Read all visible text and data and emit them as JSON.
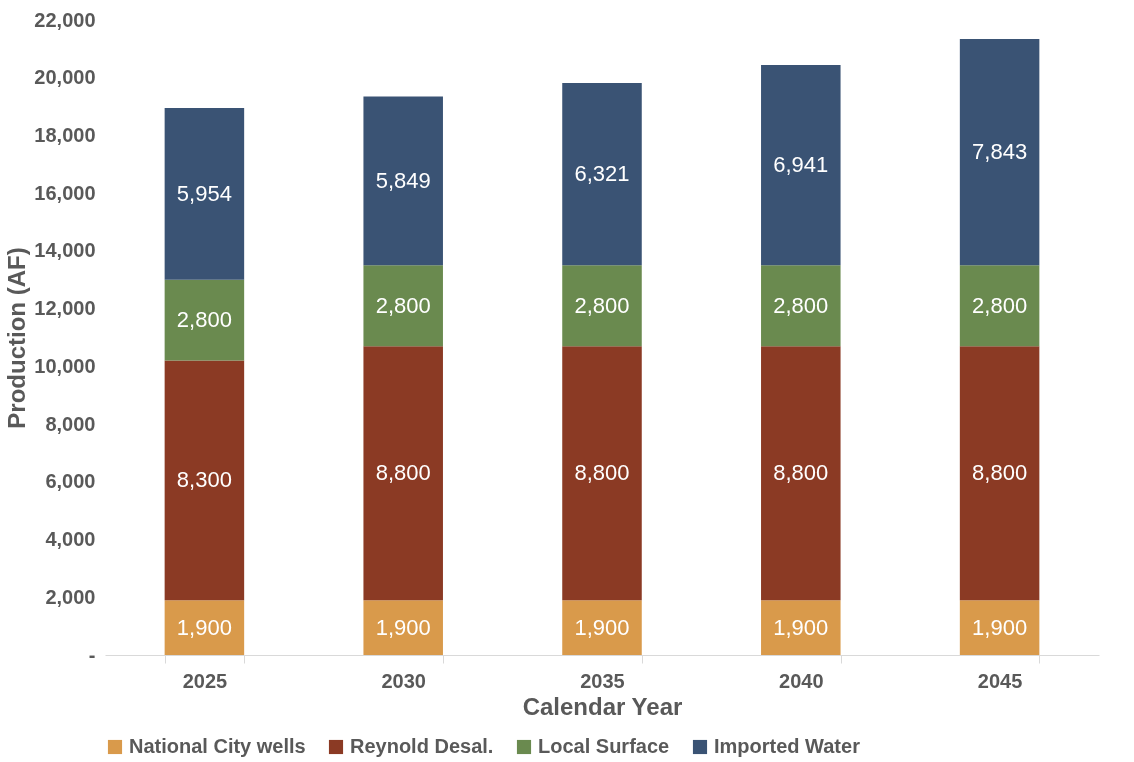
{
  "chart_data": {
    "type": "bar",
    "stacked": true,
    "xlabel": "Calendar Year",
    "ylabel": "Production (AF)",
    "categories": [
      "2025",
      "2030",
      "2035",
      "2040",
      "2045"
    ],
    "series": [
      {
        "name": "National City wells",
        "color": "#d99a4b",
        "values": [
          1900,
          1900,
          1900,
          1900,
          1900
        ],
        "value_labels": [
          "1,900",
          "1,900",
          "1,900",
          "1,900",
          "1,900"
        ]
      },
      {
        "name": "Reynold Desal.",
        "color": "#8b3a24",
        "values": [
          8300,
          8800,
          8800,
          8800,
          8800
        ],
        "value_labels": [
          "8,300",
          "8,800",
          "8,800",
          "8,800",
          "8,800"
        ]
      },
      {
        "name": "Local Surface",
        "color": "#6a8a4f",
        "values": [
          2800,
          2800,
          2800,
          2800,
          2800
        ],
        "value_labels": [
          "2,800",
          "2,800",
          "2,800",
          "2,800",
          "2,800"
        ]
      },
      {
        "name": "Imported Water",
        "color": "#3a5374",
        "values": [
          5954,
          5849,
          6321,
          6941,
          7843
        ],
        "value_labels": [
          "5,954",
          "5,849",
          "6,321",
          "6,941",
          "7,843"
        ]
      }
    ],
    "ylim": [
      0,
      22000
    ],
    "yticks": [
      {
        "value": 0,
        "label": "-"
      },
      {
        "value": 2000,
        "label": "2,000"
      },
      {
        "value": 4000,
        "label": "4,000"
      },
      {
        "value": 6000,
        "label": "6,000"
      },
      {
        "value": 8000,
        "label": "8,000"
      },
      {
        "value": 10000,
        "label": "10,000"
      },
      {
        "value": 12000,
        "label": "12,000"
      },
      {
        "value": 14000,
        "label": "14,000"
      },
      {
        "value": 16000,
        "label": "16,000"
      },
      {
        "value": 18000,
        "label": "18,000"
      },
      {
        "value": 20000,
        "label": "20,000"
      },
      {
        "value": 22000,
        "label": "22,000"
      }
    ],
    "grid": false,
    "legend": "bottom"
  }
}
